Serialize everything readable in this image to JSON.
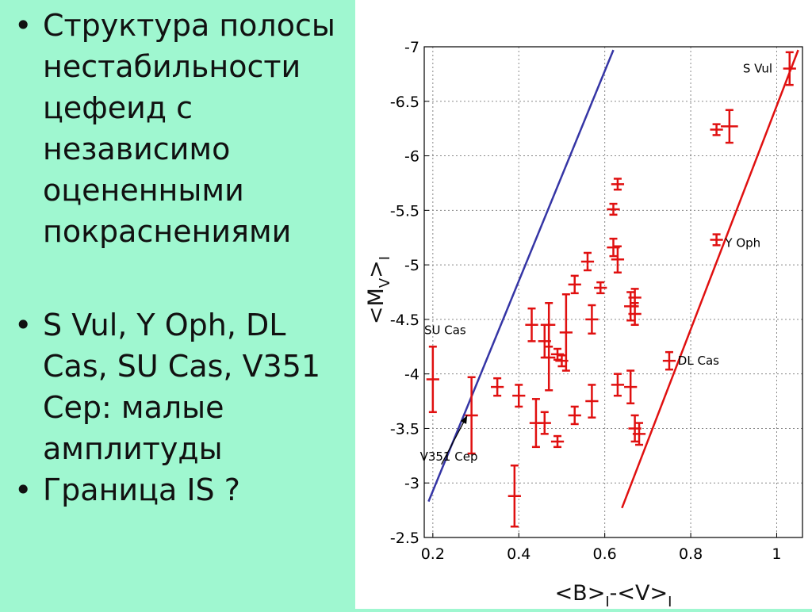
{
  "bullets": [
    {
      "text": "Структура полосы нестабильности цефеид с независимо оцененными покраснениями"
    },
    {
      "text": "S Vul, Y Oph, DL Cas, SU Cas, V351 Cep: малые амплитуды"
    },
    {
      "text": "Граница IS ?"
    }
  ],
  "chart_data": {
    "type": "scatter",
    "xlabel": "<B>I-<V>I",
    "ylabel": "<MV>I",
    "xlim": [
      0.18,
      1.06
    ],
    "ylim": [
      -2.5,
      -7.0
    ],
    "x_ticks": [
      "0.2",
      "0.4",
      "0.6",
      "0.8",
      "1"
    ],
    "y_ticks": [
      "-7",
      "-6.5",
      "-6",
      "-5.5",
      "-5",
      "-4.5",
      "-4",
      "-3.5",
      "-3",
      "-2.5"
    ],
    "grid": true,
    "colors": {
      "points": "#e01010",
      "blue_line": "#3535a5",
      "red_line": "#e01010",
      "axis": "#000000",
      "grid": "#888888"
    },
    "points": [
      {
        "x": 1.03,
        "y": -6.8,
        "yerr": 0.15,
        "xerr": 0.015
      },
      {
        "x": 0.89,
        "y": -6.27,
        "yerr": 0.15,
        "xerr": 0.02
      },
      {
        "x": 0.86,
        "y": -6.24,
        "yerr": 0.05,
        "xerr": 0.015
      },
      {
        "x": 0.63,
        "y": -5.74,
        "yerr": 0.05,
        "xerr": 0.015
      },
      {
        "x": 0.62,
        "y": -5.51,
        "yerr": 0.05,
        "xerr": 0.015
      },
      {
        "x": 0.86,
        "y": -5.23,
        "yerr": 0.05,
        "xerr": 0.015
      },
      {
        "x": 0.62,
        "y": -5.16,
        "yerr": 0.08,
        "xerr": 0.015
      },
      {
        "x": 0.63,
        "y": -5.05,
        "yerr": 0.12,
        "xerr": 0.015
      },
      {
        "x": 0.56,
        "y": -5.03,
        "yerr": 0.08,
        "xerr": 0.015
      },
      {
        "x": 0.53,
        "y": -4.82,
        "yerr": 0.08,
        "xerr": 0.015
      },
      {
        "x": 0.59,
        "y": -4.79,
        "yerr": 0.05,
        "xerr": 0.015
      },
      {
        "x": 0.67,
        "y": -4.7,
        "yerr": 0.08,
        "xerr": 0.015
      },
      {
        "x": 0.66,
        "y": -4.62,
        "yerr": 0.13,
        "xerr": 0.015
      },
      {
        "x": 0.67,
        "y": -4.55,
        "yerr": 0.1,
        "xerr": 0.015
      },
      {
        "x": 0.57,
        "y": -4.5,
        "yerr": 0.13,
        "xerr": 0.015
      },
      {
        "x": 0.43,
        "y": -4.45,
        "yerr": 0.15,
        "xerr": 0.015
      },
      {
        "x": 0.51,
        "y": -4.38,
        "yerr": 0.35,
        "xerr": 0.015
      },
      {
        "x": 0.47,
        "y": -4.45,
        "yerr": 0.2,
        "xerr": 0.015
      },
      {
        "x": 0.46,
        "y": -4.3,
        "yerr": 0.15,
        "xerr": 0.015
      },
      {
        "x": 0.49,
        "y": -4.18,
        "yerr": 0.05,
        "xerr": 0.015
      },
      {
        "x": 0.47,
        "y": -4.15,
        "yerr": 0.3,
        "xerr": 0.015
      },
      {
        "x": 0.5,
        "y": -4.12,
        "yerr": 0.05,
        "xerr": 0.015
      },
      {
        "x": 0.75,
        "y": -4.12,
        "yerr": 0.08,
        "xerr": 0.015
      },
      {
        "x": 0.2,
        "y": -3.95,
        "yerr": 0.3,
        "xerr": 0.015
      },
      {
        "x": 0.35,
        "y": -3.88,
        "yerr": 0.08,
        "xerr": 0.015
      },
      {
        "x": 0.66,
        "y": -3.88,
        "yerr": 0.15,
        "xerr": 0.015
      },
      {
        "x": 0.63,
        "y": -3.9,
        "yerr": 0.1,
        "xerr": 0.015
      },
      {
        "x": 0.4,
        "y": -3.8,
        "yerr": 0.1,
        "xerr": 0.015
      },
      {
        "x": 0.57,
        "y": -3.75,
        "yerr": 0.15,
        "xerr": 0.015
      },
      {
        "x": 0.29,
        "y": -3.62,
        "yerr": 0.35,
        "xerr": 0.015
      },
      {
        "x": 0.53,
        "y": -3.62,
        "yerr": 0.08,
        "xerr": 0.015
      },
      {
        "x": 0.44,
        "y": -3.55,
        "yerr": 0.22,
        "xerr": 0.015
      },
      {
        "x": 0.46,
        "y": -3.55,
        "yerr": 0.1,
        "xerr": 0.015
      },
      {
        "x": 0.67,
        "y": -3.5,
        "yerr": 0.12,
        "xerr": 0.015
      },
      {
        "x": 0.68,
        "y": -3.45,
        "yerr": 0.1,
        "xerr": 0.015
      },
      {
        "x": 0.49,
        "y": -3.38,
        "yerr": 0.05,
        "xerr": 0.015
      },
      {
        "x": 0.39,
        "y": -2.88,
        "yerr": 0.28,
        "xerr": 0.015
      }
    ],
    "blue_line": {
      "x1": 0.19,
      "y1": -2.83,
      "x2": 0.62,
      "y2": -6.97
    },
    "red_line": {
      "x1": 0.64,
      "y1": -2.77,
      "x2": 1.05,
      "y2": -6.97
    },
    "labels": [
      {
        "text": "S Vul",
        "x": 0.99,
        "y": -6.8,
        "anchor": "end"
      },
      {
        "text": "Y Oph",
        "x": 0.88,
        "y": -5.2,
        "anchor": "start"
      },
      {
        "text": "DL Cas",
        "x": 0.77,
        "y": -4.12,
        "anchor": "start"
      },
      {
        "text": "SU Cas",
        "x": 0.18,
        "y": -4.4,
        "anchor": "start"
      },
      {
        "text": "V351 Cep",
        "x": 0.17,
        "y": -3.24,
        "anchor": "start"
      }
    ],
    "arrow": {
      "x1": 0.22,
      "y1": -3.17,
      "x2": 0.28,
      "y2": -3.62
    }
  }
}
